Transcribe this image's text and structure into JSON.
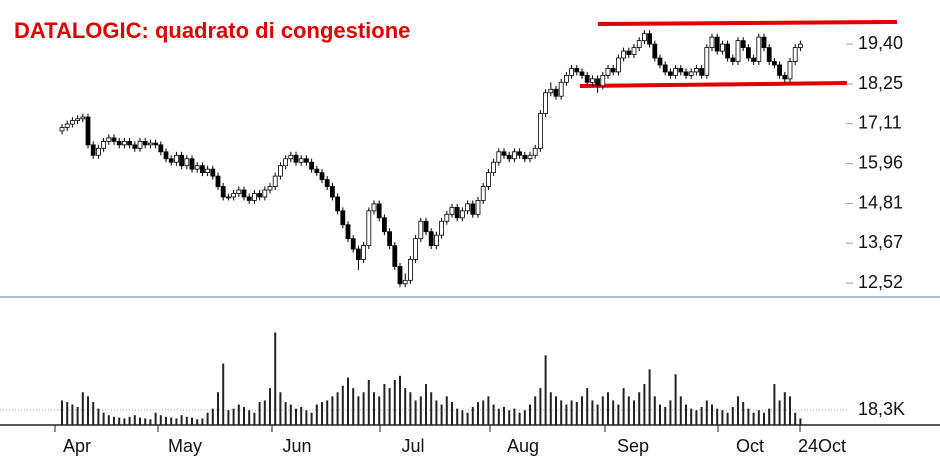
{
  "chart_data": {
    "type": "candlestick",
    "title": "DATALOGIC: quadrato di congestione",
    "ylim": [
      12.12,
      20.67
    ],
    "yticks": [
      {
        "value": 19.4,
        "label": "19,40"
      },
      {
        "value": 18.25,
        "label": "18,25"
      },
      {
        "value": 17.11,
        "label": "17,11"
      },
      {
        "value": 15.96,
        "label": "15,96"
      },
      {
        "value": 14.81,
        "label": "14,81"
      },
      {
        "value": 13.67,
        "label": "13,67"
      },
      {
        "value": 12.52,
        "label": "12,52"
      }
    ],
    "xlabels": [
      "Apr",
      "May",
      "Jun",
      "Jul",
      "Aug",
      "Sep",
      "Oct",
      "24Oct"
    ],
    "candles": [
      [
        16.9,
        17.1,
        16.8,
        17.0
      ],
      [
        17.0,
        17.2,
        16.9,
        17.1
      ],
      [
        17.1,
        17.3,
        17.0,
        17.2
      ],
      [
        17.2,
        17.35,
        17.1,
        17.25
      ],
      [
        17.25,
        17.4,
        17.15,
        17.3
      ],
      [
        17.3,
        17.4,
        16.4,
        16.5
      ],
      [
        16.5,
        16.6,
        16.1,
        16.2
      ],
      [
        16.2,
        16.5,
        16.1,
        16.4
      ],
      [
        16.4,
        16.7,
        16.3,
        16.6
      ],
      [
        16.6,
        16.8,
        16.5,
        16.7
      ],
      [
        16.7,
        16.8,
        16.5,
        16.6
      ],
      [
        16.6,
        16.7,
        16.4,
        16.5
      ],
      [
        16.5,
        16.7,
        16.4,
        16.6
      ],
      [
        16.6,
        16.7,
        16.4,
        16.5
      ],
      [
        16.5,
        16.6,
        16.3,
        16.4
      ],
      [
        16.4,
        16.7,
        16.3,
        16.6
      ],
      [
        16.6,
        16.7,
        16.4,
        16.5
      ],
      [
        16.5,
        16.65,
        16.4,
        16.55
      ],
      [
        16.55,
        16.65,
        16.4,
        16.5
      ],
      [
        16.5,
        16.6,
        16.2,
        16.3
      ],
      [
        16.3,
        16.4,
        16.0,
        16.1
      ],
      [
        16.1,
        16.2,
        15.9,
        16.0
      ],
      [
        16.0,
        16.3,
        15.9,
        16.2
      ],
      [
        16.2,
        16.3,
        15.8,
        15.9
      ],
      [
        15.9,
        16.2,
        15.8,
        16.1
      ],
      [
        16.1,
        16.2,
        15.7,
        15.8
      ],
      [
        15.8,
        16.0,
        15.7,
        15.9
      ],
      [
        15.9,
        16.0,
        15.6,
        15.7
      ],
      [
        15.7,
        15.9,
        15.6,
        15.8
      ],
      [
        15.8,
        15.9,
        15.5,
        15.6
      ],
      [
        15.6,
        15.7,
        15.2,
        15.3
      ],
      [
        15.3,
        15.4,
        14.9,
        15.0
      ],
      [
        15.0,
        15.1,
        14.9,
        15.0
      ],
      [
        15.0,
        15.2,
        14.9,
        15.1
      ],
      [
        15.1,
        15.3,
        15.0,
        15.2
      ],
      [
        15.2,
        15.3,
        14.9,
        15.0
      ],
      [
        15.0,
        15.1,
        14.8,
        14.9
      ],
      [
        14.9,
        15.2,
        14.8,
        15.1
      ],
      [
        15.1,
        15.2,
        14.9,
        15.0
      ],
      [
        15.0,
        15.3,
        14.9,
        15.2
      ],
      [
        15.2,
        15.4,
        15.1,
        15.3
      ],
      [
        15.3,
        15.7,
        15.2,
        15.6
      ],
      [
        15.6,
        16.0,
        15.5,
        15.9
      ],
      [
        15.9,
        16.2,
        15.8,
        16.1
      ],
      [
        16.1,
        16.3,
        16.0,
        16.2
      ],
      [
        16.2,
        16.3,
        15.9,
        16.0
      ],
      [
        16.0,
        16.2,
        15.9,
        16.1
      ],
      [
        16.1,
        16.2,
        15.9,
        16.0
      ],
      [
        16.0,
        16.1,
        15.7,
        15.8
      ],
      [
        15.8,
        15.9,
        15.6,
        15.7
      ],
      [
        15.7,
        15.8,
        15.4,
        15.5
      ],
      [
        15.5,
        15.6,
        15.2,
        15.3
      ],
      [
        15.3,
        15.4,
        14.9,
        15.0
      ],
      [
        15.0,
        15.1,
        14.5,
        14.6
      ],
      [
        14.6,
        14.7,
        14.1,
        14.2
      ],
      [
        14.2,
        14.3,
        13.7,
        13.8
      ],
      [
        13.8,
        13.9,
        13.4,
        13.5
      ],
      [
        13.5,
        13.6,
        12.9,
        13.2
      ],
      [
        13.2,
        13.7,
        13.1,
        13.6
      ],
      [
        13.6,
        14.7,
        13.5,
        14.6
      ],
      [
        14.6,
        14.9,
        14.5,
        14.8
      ],
      [
        14.8,
        14.9,
        14.3,
        14.4
      ],
      [
        14.4,
        14.5,
        13.9,
        14.0
      ],
      [
        14.0,
        14.1,
        13.5,
        13.6
      ],
      [
        13.6,
        13.7,
        12.9,
        13.0
      ],
      [
        13.0,
        13.1,
        12.4,
        12.5
      ],
      [
        12.5,
        12.8,
        12.4,
        12.6
      ],
      [
        12.6,
        13.3,
        12.5,
        13.2
      ],
      [
        13.2,
        13.9,
        13.1,
        13.8
      ],
      [
        13.8,
        14.4,
        13.7,
        14.3
      ],
      [
        14.3,
        14.4,
        13.9,
        14.0
      ],
      [
        14.0,
        14.1,
        13.5,
        13.6
      ],
      [
        13.6,
        14.0,
        13.5,
        13.9
      ],
      [
        13.9,
        14.4,
        13.8,
        14.3
      ],
      [
        14.3,
        14.6,
        14.2,
        14.5
      ],
      [
        14.5,
        14.8,
        14.4,
        14.7
      ],
      [
        14.7,
        14.8,
        14.3,
        14.4
      ],
      [
        14.4,
        14.7,
        14.3,
        14.6
      ],
      [
        14.6,
        14.9,
        14.5,
        14.8
      ],
      [
        14.8,
        14.9,
        14.4,
        14.5
      ],
      [
        14.5,
        15.0,
        14.4,
        14.9
      ],
      [
        14.9,
        15.4,
        14.8,
        15.3
      ],
      [
        15.3,
        15.8,
        15.2,
        15.7
      ],
      [
        15.7,
        16.1,
        15.6,
        16.0
      ],
      [
        16.0,
        16.4,
        15.9,
        16.3
      ],
      [
        16.3,
        16.4,
        16.1,
        16.2
      ],
      [
        16.2,
        16.3,
        16.0,
        16.1
      ],
      [
        16.1,
        16.4,
        16.0,
        16.3
      ],
      [
        16.3,
        16.4,
        16.1,
        16.2
      ],
      [
        16.2,
        16.3,
        16.0,
        16.1
      ],
      [
        16.1,
        16.3,
        16.0,
        16.2
      ],
      [
        16.2,
        16.5,
        16.1,
        16.4
      ],
      [
        16.4,
        17.5,
        16.3,
        17.4
      ],
      [
        17.4,
        18.1,
        17.3,
        18.0
      ],
      [
        18.0,
        18.3,
        17.9,
        18.1
      ],
      [
        18.1,
        18.2,
        17.8,
        17.9
      ],
      [
        17.9,
        18.4,
        17.8,
        18.3
      ],
      [
        18.3,
        18.6,
        18.2,
        18.5
      ],
      [
        18.5,
        18.8,
        18.4,
        18.7
      ],
      [
        18.7,
        18.8,
        18.5,
        18.6
      ],
      [
        18.6,
        18.7,
        18.4,
        18.5
      ],
      [
        18.5,
        18.6,
        18.2,
        18.3
      ],
      [
        18.3,
        18.5,
        18.2,
        18.4
      ],
      [
        18.4,
        18.5,
        18.0,
        18.2
      ],
      [
        18.2,
        18.6,
        18.1,
        18.5
      ],
      [
        18.5,
        18.8,
        18.4,
        18.7
      ],
      [
        18.7,
        18.8,
        18.5,
        18.6
      ],
      [
        18.6,
        19.1,
        18.5,
        19.0
      ],
      [
        19.0,
        19.3,
        18.9,
        19.2
      ],
      [
        19.2,
        19.3,
        19.0,
        19.1
      ],
      [
        19.1,
        19.4,
        19.0,
        19.3
      ],
      [
        19.3,
        19.6,
        19.2,
        19.5
      ],
      [
        19.5,
        19.8,
        19.4,
        19.7
      ],
      [
        19.7,
        19.8,
        19.3,
        19.4
      ],
      [
        19.4,
        19.5,
        18.9,
        19.0
      ],
      [
        19.0,
        19.1,
        18.7,
        18.8
      ],
      [
        18.8,
        18.9,
        18.5,
        18.6
      ],
      [
        18.6,
        18.7,
        18.4,
        18.5
      ],
      [
        18.5,
        18.8,
        18.4,
        18.7
      ],
      [
        18.7,
        18.8,
        18.5,
        18.6
      ],
      [
        18.6,
        18.7,
        18.4,
        18.5
      ],
      [
        18.5,
        18.7,
        18.4,
        18.6
      ],
      [
        18.6,
        18.8,
        18.5,
        18.7
      ],
      [
        18.7,
        18.8,
        18.4,
        18.5
      ],
      [
        18.5,
        19.4,
        18.4,
        19.3
      ],
      [
        19.3,
        19.7,
        19.2,
        19.6
      ],
      [
        19.6,
        19.7,
        19.1,
        19.2
      ],
      [
        19.2,
        19.5,
        19.1,
        19.4
      ],
      [
        19.4,
        19.5,
        18.9,
        19.0
      ],
      [
        19.0,
        19.1,
        18.8,
        18.9
      ],
      [
        18.9,
        19.6,
        18.8,
        19.5
      ],
      [
        19.5,
        19.6,
        19.2,
        19.3
      ],
      [
        19.3,
        19.4,
        18.9,
        19.0
      ],
      [
        19.0,
        19.1,
        18.8,
        18.9
      ],
      [
        18.9,
        19.7,
        18.8,
        19.6
      ],
      [
        19.6,
        19.7,
        19.2,
        19.3
      ],
      [
        19.3,
        19.4,
        18.8,
        18.9
      ],
      [
        18.9,
        19.0,
        18.7,
        18.8
      ],
      [
        18.8,
        18.9,
        18.4,
        18.5
      ],
      [
        18.5,
        18.6,
        18.3,
        18.4
      ],
      [
        18.4,
        19.0,
        18.3,
        18.9
      ],
      [
        18.9,
        19.4,
        18.8,
        19.3
      ],
      [
        19.3,
        19.5,
        19.2,
        19.4
      ]
    ],
    "volume": {
      "ylim": [
        0,
        116000
      ],
      "yticks": [
        {
          "value": 18300,
          "label": "18,3K"
        }
      ],
      "values": [
        30000,
        28000,
        25000,
        22000,
        40000,
        35000,
        28000,
        20000,
        15000,
        12000,
        10000,
        9000,
        8000,
        10000,
        12000,
        9000,
        8000,
        7000,
        15000,
        12000,
        10000,
        9000,
        8000,
        12000,
        10000,
        9000,
        7000,
        8000,
        15000,
        20000,
        40000,
        75000,
        18000,
        20000,
        25000,
        22000,
        18000,
        15000,
        28000,
        30000,
        45000,
        113000,
        40000,
        28000,
        25000,
        20000,
        22000,
        18000,
        15000,
        25000,
        28000,
        30000,
        35000,
        40000,
        48000,
        58000,
        45000,
        35000,
        40000,
        55000,
        40000,
        35000,
        50000,
        45000,
        55000,
        60000,
        45000,
        40000,
        30000,
        35000,
        50000,
        40000,
        30000,
        25000,
        35000,
        28000,
        20000,
        18000,
        15000,
        22000,
        28000,
        30000,
        35000,
        25000,
        20000,
        22000,
        18000,
        20000,
        15000,
        18000,
        25000,
        35000,
        45000,
        85000,
        40000,
        35000,
        30000,
        25000,
        30000,
        28000,
        35000,
        45000,
        30000,
        25000,
        35000,
        40000,
        30000,
        25000,
        45000,
        35000,
        30000,
        40000,
        50000,
        68000,
        35000,
        25000,
        22000,
        30000,
        62000,
        35000,
        25000,
        20000,
        18000,
        22000,
        30000,
        25000,
        20000,
        18000,
        15000,
        22000,
        35000,
        28000,
        20000,
        15000,
        18000,
        15000,
        20000,
        50000,
        30000,
        40000,
        35000,
        15000,
        8000
      ]
    }
  }
}
